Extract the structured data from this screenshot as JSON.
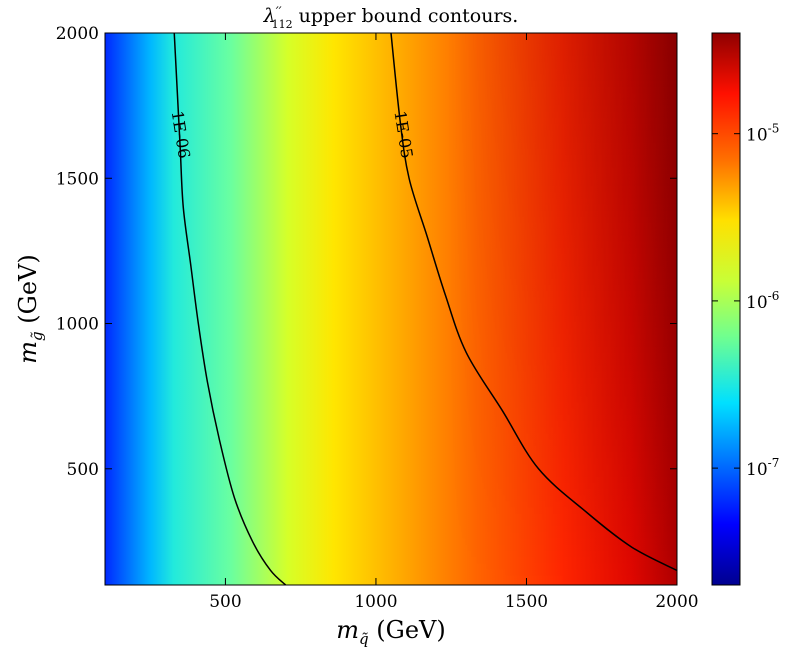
{
  "chart_data": {
    "type": "heatmap",
    "title": {
      "lambda": "λ",
      "prime": "′′",
      "subscript": "112",
      "rest": " upper bound contours."
    },
    "xlabel": {
      "symbol": "m",
      "sub": "q̃",
      "unit": " (GeV)"
    },
    "ylabel": {
      "symbol": "m",
      "sub": "g̃",
      "unit": " (GeV)"
    },
    "xlim": [
      100,
      2000
    ],
    "ylim": [
      100,
      2000
    ],
    "x_ticks": [
      500,
      1000,
      1500,
      2000
    ],
    "y_ticks": [
      500,
      1000,
      1500,
      2000
    ],
    "colorbar": {
      "scale": "log",
      "range": [
        2e-08,
        4e-05
      ],
      "ticks": [
        {
          "value": 1e-07,
          "base": "10",
          "exp": "-7"
        },
        {
          "value": 1e-06,
          "base": "10",
          "exp": "-6"
        },
        {
          "value": 1e-05,
          "base": "10",
          "exp": "-5"
        }
      ]
    },
    "colormap": "jet",
    "contours": [
      {
        "level": 1e-06,
        "label": "1E-06",
        "label_at": [
          350,
          1650
        ],
        "points": [
          [
            330,
            2000
          ],
          [
            340,
            1800
          ],
          [
            350,
            1600
          ],
          [
            360,
            1400
          ],
          [
            385,
            1200
          ],
          [
            410,
            1000
          ],
          [
            440,
            800
          ],
          [
            480,
            600
          ],
          [
            530,
            400
          ],
          [
            590,
            250
          ],
          [
            650,
            150
          ],
          [
            700,
            100
          ]
        ]
      },
      {
        "level": 1e-05,
        "label": "1E-05",
        "label_at": [
          1090,
          1650
        ],
        "points": [
          [
            1050,
            2000
          ],
          [
            1080,
            1700
          ],
          [
            1110,
            1500
          ],
          [
            1170,
            1300
          ],
          [
            1230,
            1100
          ],
          [
            1300,
            900
          ],
          [
            1420,
            700
          ],
          [
            1540,
            500
          ],
          [
            1700,
            350
          ],
          [
            1850,
            230
          ],
          [
            2000,
            150
          ]
        ]
      }
    ]
  }
}
